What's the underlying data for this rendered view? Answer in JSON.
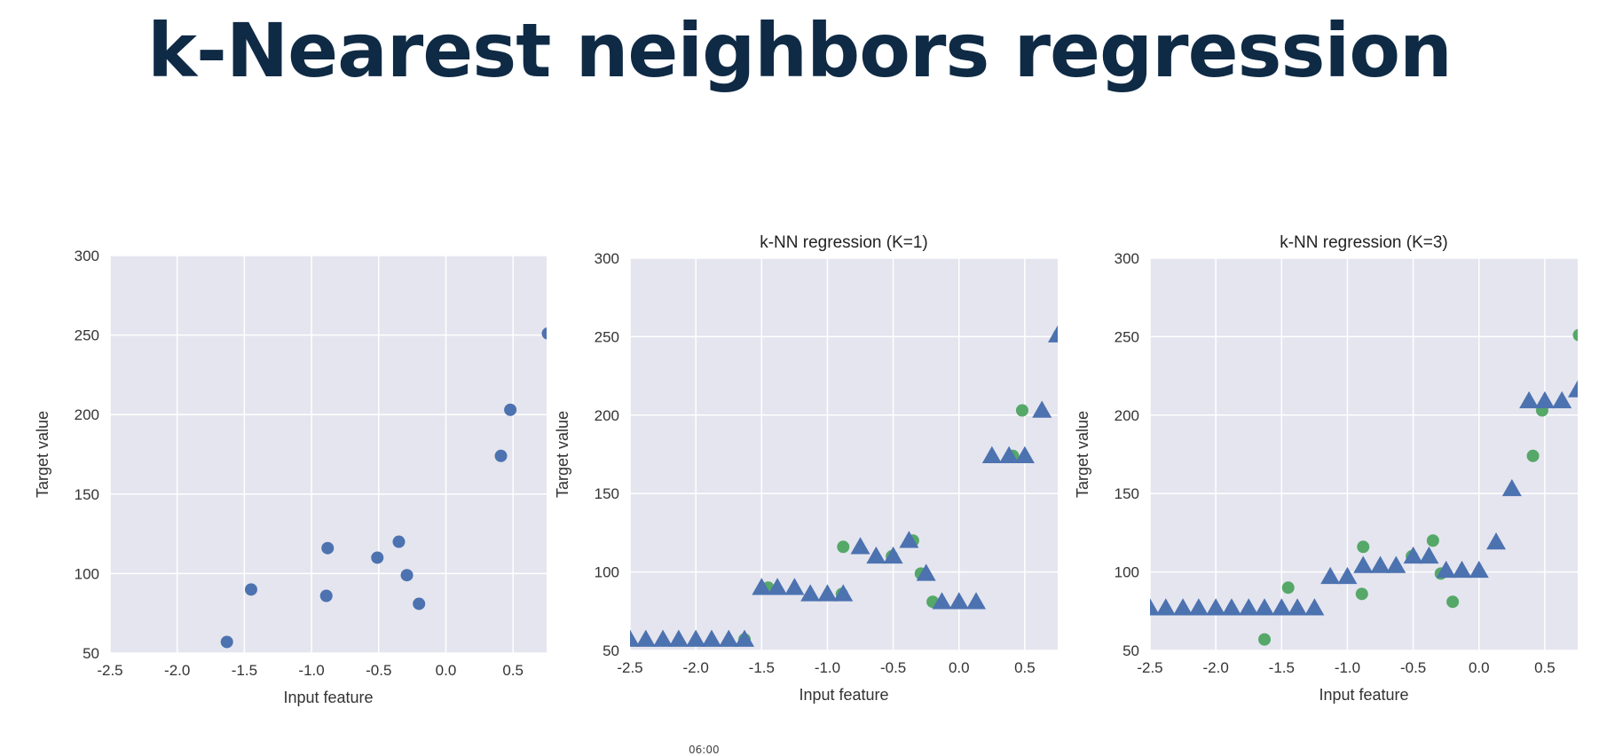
{
  "slide": {
    "title": "k-Nearest neighbors regression",
    "timestamp": "06:00"
  },
  "style": {
    "plot_background": "#e5e5ef",
    "grid_color": "#ffffff",
    "point_color": "#4c72b0",
    "train_point_color": "#55a868",
    "prediction_color": "#4c72b0",
    "title_color": "#0f2a45"
  },
  "chart_data": [
    {
      "type": "scatter",
      "title": "",
      "xlabel": "Input feature",
      "ylabel": "Target value",
      "xlim": [
        -2.5,
        0.75
      ],
      "ylim": [
        50,
        300
      ],
      "xticks": [
        "-2.5",
        "-2.0",
        "-1.5",
        "-1.0",
        "-0.5",
        "0.0",
        "0.5"
      ],
      "yticks": [
        "50",
        "100",
        "150",
        "200",
        "250",
        "300"
      ],
      "grid": true,
      "series": [
        {
          "marker": "circle",
          "color": "#4c72b0",
          "x": [
            -1.63,
            -1.45,
            -0.89,
            -0.88,
            -0.51,
            -0.35,
            -0.29,
            -0.2,
            0.41,
            0.48,
            0.76
          ],
          "y": [
            57,
            90,
            86,
            116,
            110,
            120,
            99,
            81,
            174,
            203,
            251
          ]
        }
      ]
    },
    {
      "type": "scatter",
      "title": "k-NN regression (K=1)",
      "xlabel": "Input feature",
      "ylabel": "Target value",
      "xlim": [
        -2.5,
        0.75
      ],
      "ylim": [
        50,
        300
      ],
      "xticks": [
        "-2.5",
        "-2.0",
        "-1.5",
        "-1.0",
        "-0.5",
        "0.0",
        "0.5"
      ],
      "yticks": [
        "50",
        "100",
        "150",
        "200",
        "250",
        "300"
      ],
      "grid": true,
      "series": [
        {
          "marker": "circle",
          "color": "#55a868",
          "x": [
            -1.63,
            -1.45,
            -0.89,
            -0.88,
            -0.51,
            -0.35,
            -0.29,
            -0.2,
            0.41,
            0.48,
            0.76
          ],
          "y": [
            57,
            90,
            86,
            116,
            110,
            120,
            99,
            81,
            174,
            203,
            251
          ]
        },
        {
          "marker": "triangle",
          "color": "#4c72b0",
          "x": [
            -2.5,
            -2.38,
            -2.25,
            -2.13,
            -2.0,
            -1.88,
            -1.75,
            -1.63,
            -1.5,
            -1.38,
            -1.25,
            -1.13,
            -1.0,
            -0.88,
            -0.75,
            -0.63,
            -0.5,
            -0.38,
            -0.25,
            -0.13,
            0.0,
            0.13,
            0.25,
            0.38,
            0.5,
            0.63,
            0.75
          ],
          "y": [
            57,
            57,
            57,
            57,
            57,
            57,
            57,
            57,
            90,
            90,
            90,
            86,
            86,
            86,
            116,
            110,
            110,
            120,
            99,
            81,
            81,
            81,
            174,
            174,
            174,
            203,
            251
          ]
        }
      ]
    },
    {
      "type": "scatter",
      "title": "k-NN regression (K=3)",
      "xlabel": "Input feature",
      "ylabel": "Target value",
      "xlim": [
        -2.5,
        0.75
      ],
      "ylim": [
        50,
        300
      ],
      "xticks": [
        "-2.5",
        "-2.0",
        "-1.5",
        "-1.0",
        "-0.5",
        "0.0",
        "0.5"
      ],
      "yticks": [
        "50",
        "100",
        "150",
        "200",
        "250",
        "300"
      ],
      "grid": true,
      "series": [
        {
          "marker": "circle",
          "color": "#55a868",
          "x": [
            -1.63,
            -1.45,
            -0.89,
            -0.88,
            -0.51,
            -0.35,
            -0.29,
            -0.2,
            0.41,
            0.48,
            0.76
          ],
          "y": [
            57,
            90,
            86,
            116,
            110,
            120,
            99,
            81,
            174,
            203,
            251
          ]
        },
        {
          "marker": "triangle",
          "color": "#4c72b0",
          "x": [
            -2.5,
            -2.38,
            -2.25,
            -2.13,
            -2.0,
            -1.88,
            -1.75,
            -1.63,
            -1.5,
            -1.38,
            -1.25,
            -1.13,
            -1.0,
            -0.88,
            -0.75,
            -0.63,
            -0.5,
            -0.38,
            -0.25,
            -0.13,
            0.0,
            0.13,
            0.25,
            0.38,
            0.5,
            0.63,
            0.75
          ],
          "y": [
            77,
            77,
            77,
            77,
            77,
            77,
            77,
            77,
            77,
            77,
            77,
            97,
            97,
            104,
            104,
            104,
            110,
            110,
            101,
            101,
            101,
            119,
            153,
            209,
            209,
            209,
            216
          ]
        }
      ]
    }
  ]
}
